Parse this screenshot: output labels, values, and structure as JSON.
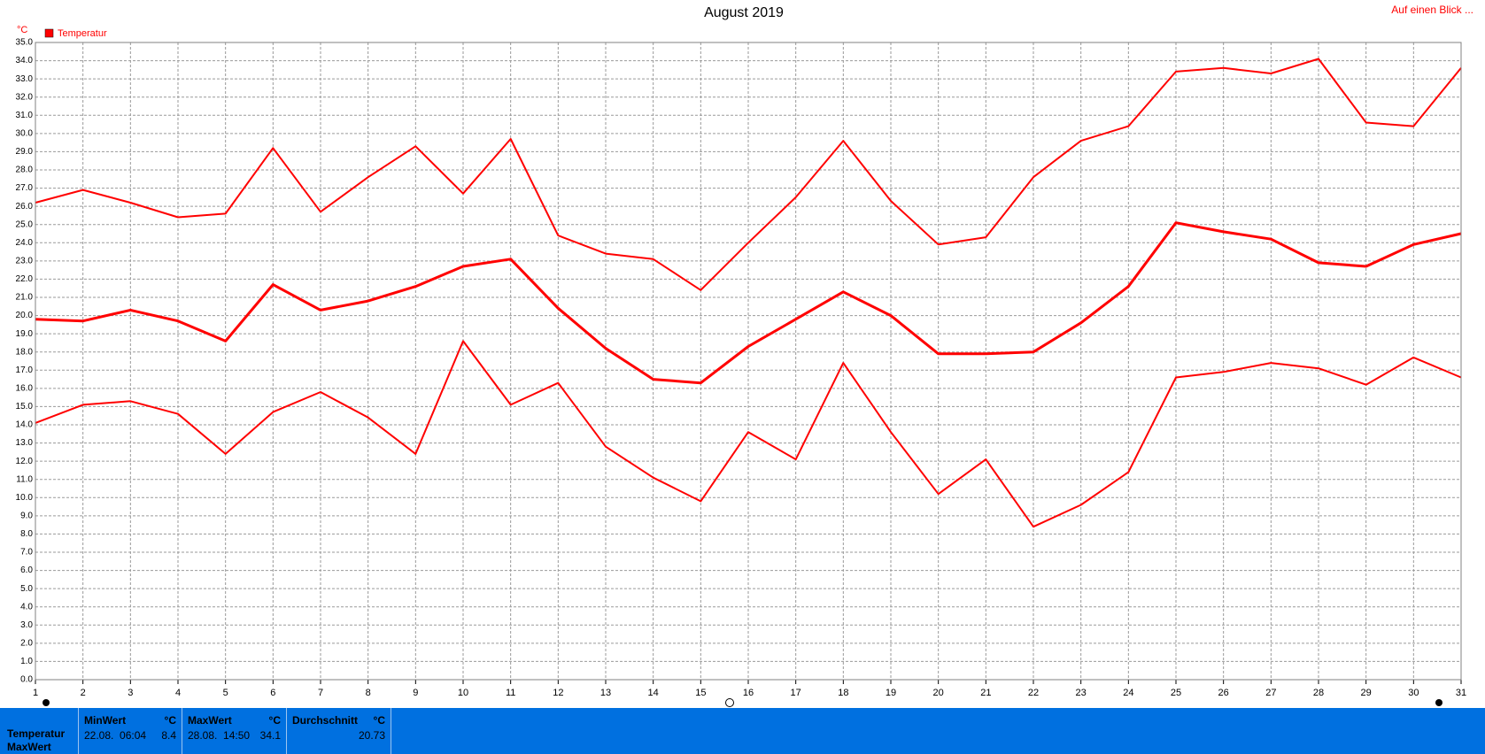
{
  "header": {
    "link": "Auf einen Blick ..."
  },
  "chart_data": {
    "type": "line",
    "title": "August 2019",
    "y_unit": "°C",
    "legend_corner": "top-left",
    "grid": true,
    "x": [
      1,
      2,
      3,
      4,
      5,
      6,
      7,
      8,
      9,
      10,
      11,
      12,
      13,
      14,
      15,
      16,
      17,
      18,
      19,
      20,
      21,
      22,
      23,
      24,
      25,
      26,
      27,
      28,
      29,
      30,
      31
    ],
    "xlim": [
      1,
      31
    ],
    "xticks": [
      1,
      2,
      3,
      4,
      5,
      6,
      7,
      8,
      9,
      10,
      11,
      12,
      13,
      14,
      15,
      16,
      17,
      18,
      19,
      20,
      21,
      22,
      23,
      24,
      25,
      26,
      27,
      28,
      29,
      30,
      31
    ],
    "ylim": [
      0,
      35
    ],
    "yticks": [
      {
        "value": 0,
        "label": "0.0"
      },
      {
        "value": 1,
        "label": "1.0"
      },
      {
        "value": 2,
        "label": "2.0"
      },
      {
        "value": 3,
        "label": "3.0"
      },
      {
        "value": 4,
        "label": "4.0"
      },
      {
        "value": 5,
        "label": "5.0"
      },
      {
        "value": 6,
        "label": "6.0"
      },
      {
        "value": 7,
        "label": "7.0"
      },
      {
        "value": 8,
        "label": "8.0"
      },
      {
        "value": 9,
        "label": "9.0"
      },
      {
        "value": 10,
        "label": "10.0"
      },
      {
        "value": 11,
        "label": "11.0"
      },
      {
        "value": 12,
        "label": "12.0"
      },
      {
        "value": 13,
        "label": "13.0"
      },
      {
        "value": 14,
        "label": "14.0"
      },
      {
        "value": 15,
        "label": "15.0"
      },
      {
        "value": 16,
        "label": "16.0"
      },
      {
        "value": 17,
        "label": "17.0"
      },
      {
        "value": 18,
        "label": "18.0"
      },
      {
        "value": 19,
        "label": "19.0"
      },
      {
        "value": 20,
        "label": "20.0"
      },
      {
        "value": 21,
        "label": "21.0"
      },
      {
        "value": 22,
        "label": "22.0"
      },
      {
        "value": 23,
        "label": "23.0"
      },
      {
        "value": 24,
        "label": "24.0"
      },
      {
        "value": 25,
        "label": "25.0"
      },
      {
        "value": 26,
        "label": "26.0"
      },
      {
        "value": 27,
        "label": "27.0"
      },
      {
        "value": 28,
        "label": "28.0"
      },
      {
        "value": 29,
        "label": "29.0"
      },
      {
        "value": 30,
        "label": "30.0"
      },
      {
        "value": 31,
        "label": "31.0"
      },
      {
        "value": 32,
        "label": "32.0"
      },
      {
        "value": 33,
        "label": "33.0"
      },
      {
        "value": 34,
        "label": "34.0"
      },
      {
        "value": 35,
        "label": "35.0"
      }
    ],
    "series": [
      {
        "name": "Temperatur",
        "color": "#ff0000",
        "width": 2,
        "values": [
          26.2,
          26.9,
          26.2,
          25.4,
          25.6,
          29.2,
          25.7,
          27.6,
          29.3,
          26.7,
          29.7,
          24.4,
          23.4,
          23.1,
          21.4,
          24.0,
          26.5,
          29.6,
          26.3,
          23.9,
          24.3,
          27.6,
          29.6,
          30.4,
          33.4,
          33.6,
          33.3,
          34.1,
          30.6,
          30.4,
          33.6
        ]
      },
      {
        "color": "#ff0000",
        "width": 3,
        "values": [
          19.8,
          19.7,
          20.3,
          19.7,
          18.6,
          21.7,
          20.3,
          20.8,
          21.6,
          22.7,
          23.1,
          20.4,
          18.2,
          16.5,
          16.3,
          18.3,
          19.8,
          21.3,
          20.0,
          17.9,
          17.9,
          18.0,
          19.6,
          21.6,
          25.1,
          24.6,
          24.2,
          22.9,
          22.7,
          23.9,
          24.5
        ]
      },
      {
        "color": "#ff0000",
        "width": 2,
        "values": [
          14.1,
          15.1,
          15.3,
          14.6,
          12.4,
          14.7,
          15.8,
          14.4,
          12.4,
          18.6,
          15.1,
          16.3,
          12.8,
          11.1,
          9.8,
          13.6,
          12.1,
          17.4,
          13.6,
          10.2,
          12.1,
          8.4,
          9.6,
          11.4,
          16.6,
          16.9,
          17.4,
          17.1,
          16.2,
          17.7,
          16.6
        ]
      }
    ]
  },
  "table": {
    "header": [
      "MinWert",
      "°C",
      "MaxWert",
      "°C",
      "Durchschnitt",
      "°C"
    ],
    "rows": [
      [
        "Temperatur",
        "22.08.  06:04",
        8.4,
        "28.08.  14:50",
        34.1,
        20.73
      ],
      [
        "MaxWert"
      ]
    ]
  }
}
